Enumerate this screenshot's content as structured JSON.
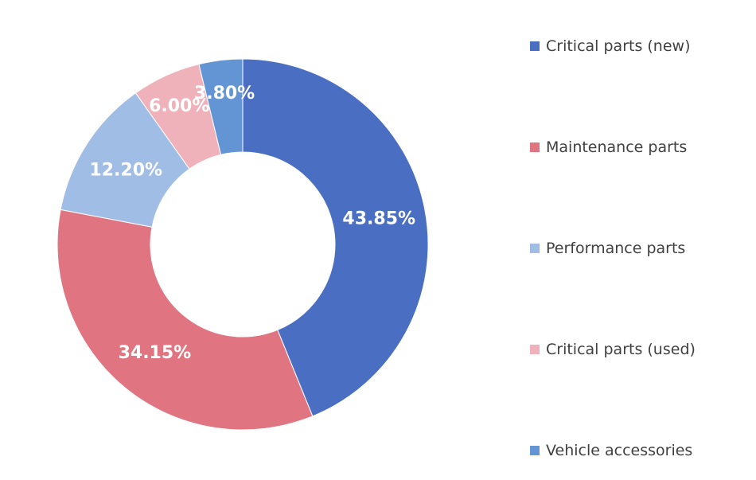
{
  "chart_data": {
    "type": "pie",
    "subtype": "donut",
    "title": "",
    "categories": [
      "Critical parts (new)",
      "Maintenance parts",
      "Performance parts",
      "Critical parts (used)",
      "Vehicle accessories"
    ],
    "values": [
      43.85,
      34.15,
      12.2,
      6.0,
      3.8
    ],
    "data_labels": [
      "43.85%",
      "34.15%",
      "12.20%",
      "6.00%",
      "3.80%"
    ],
    "colors": [
      "#4a6fc2",
      "#e07581",
      "#9fbde5",
      "#f0b2ba",
      "#6395d4"
    ],
    "legend_position": "right",
    "start_angle": "top, clockwise"
  }
}
